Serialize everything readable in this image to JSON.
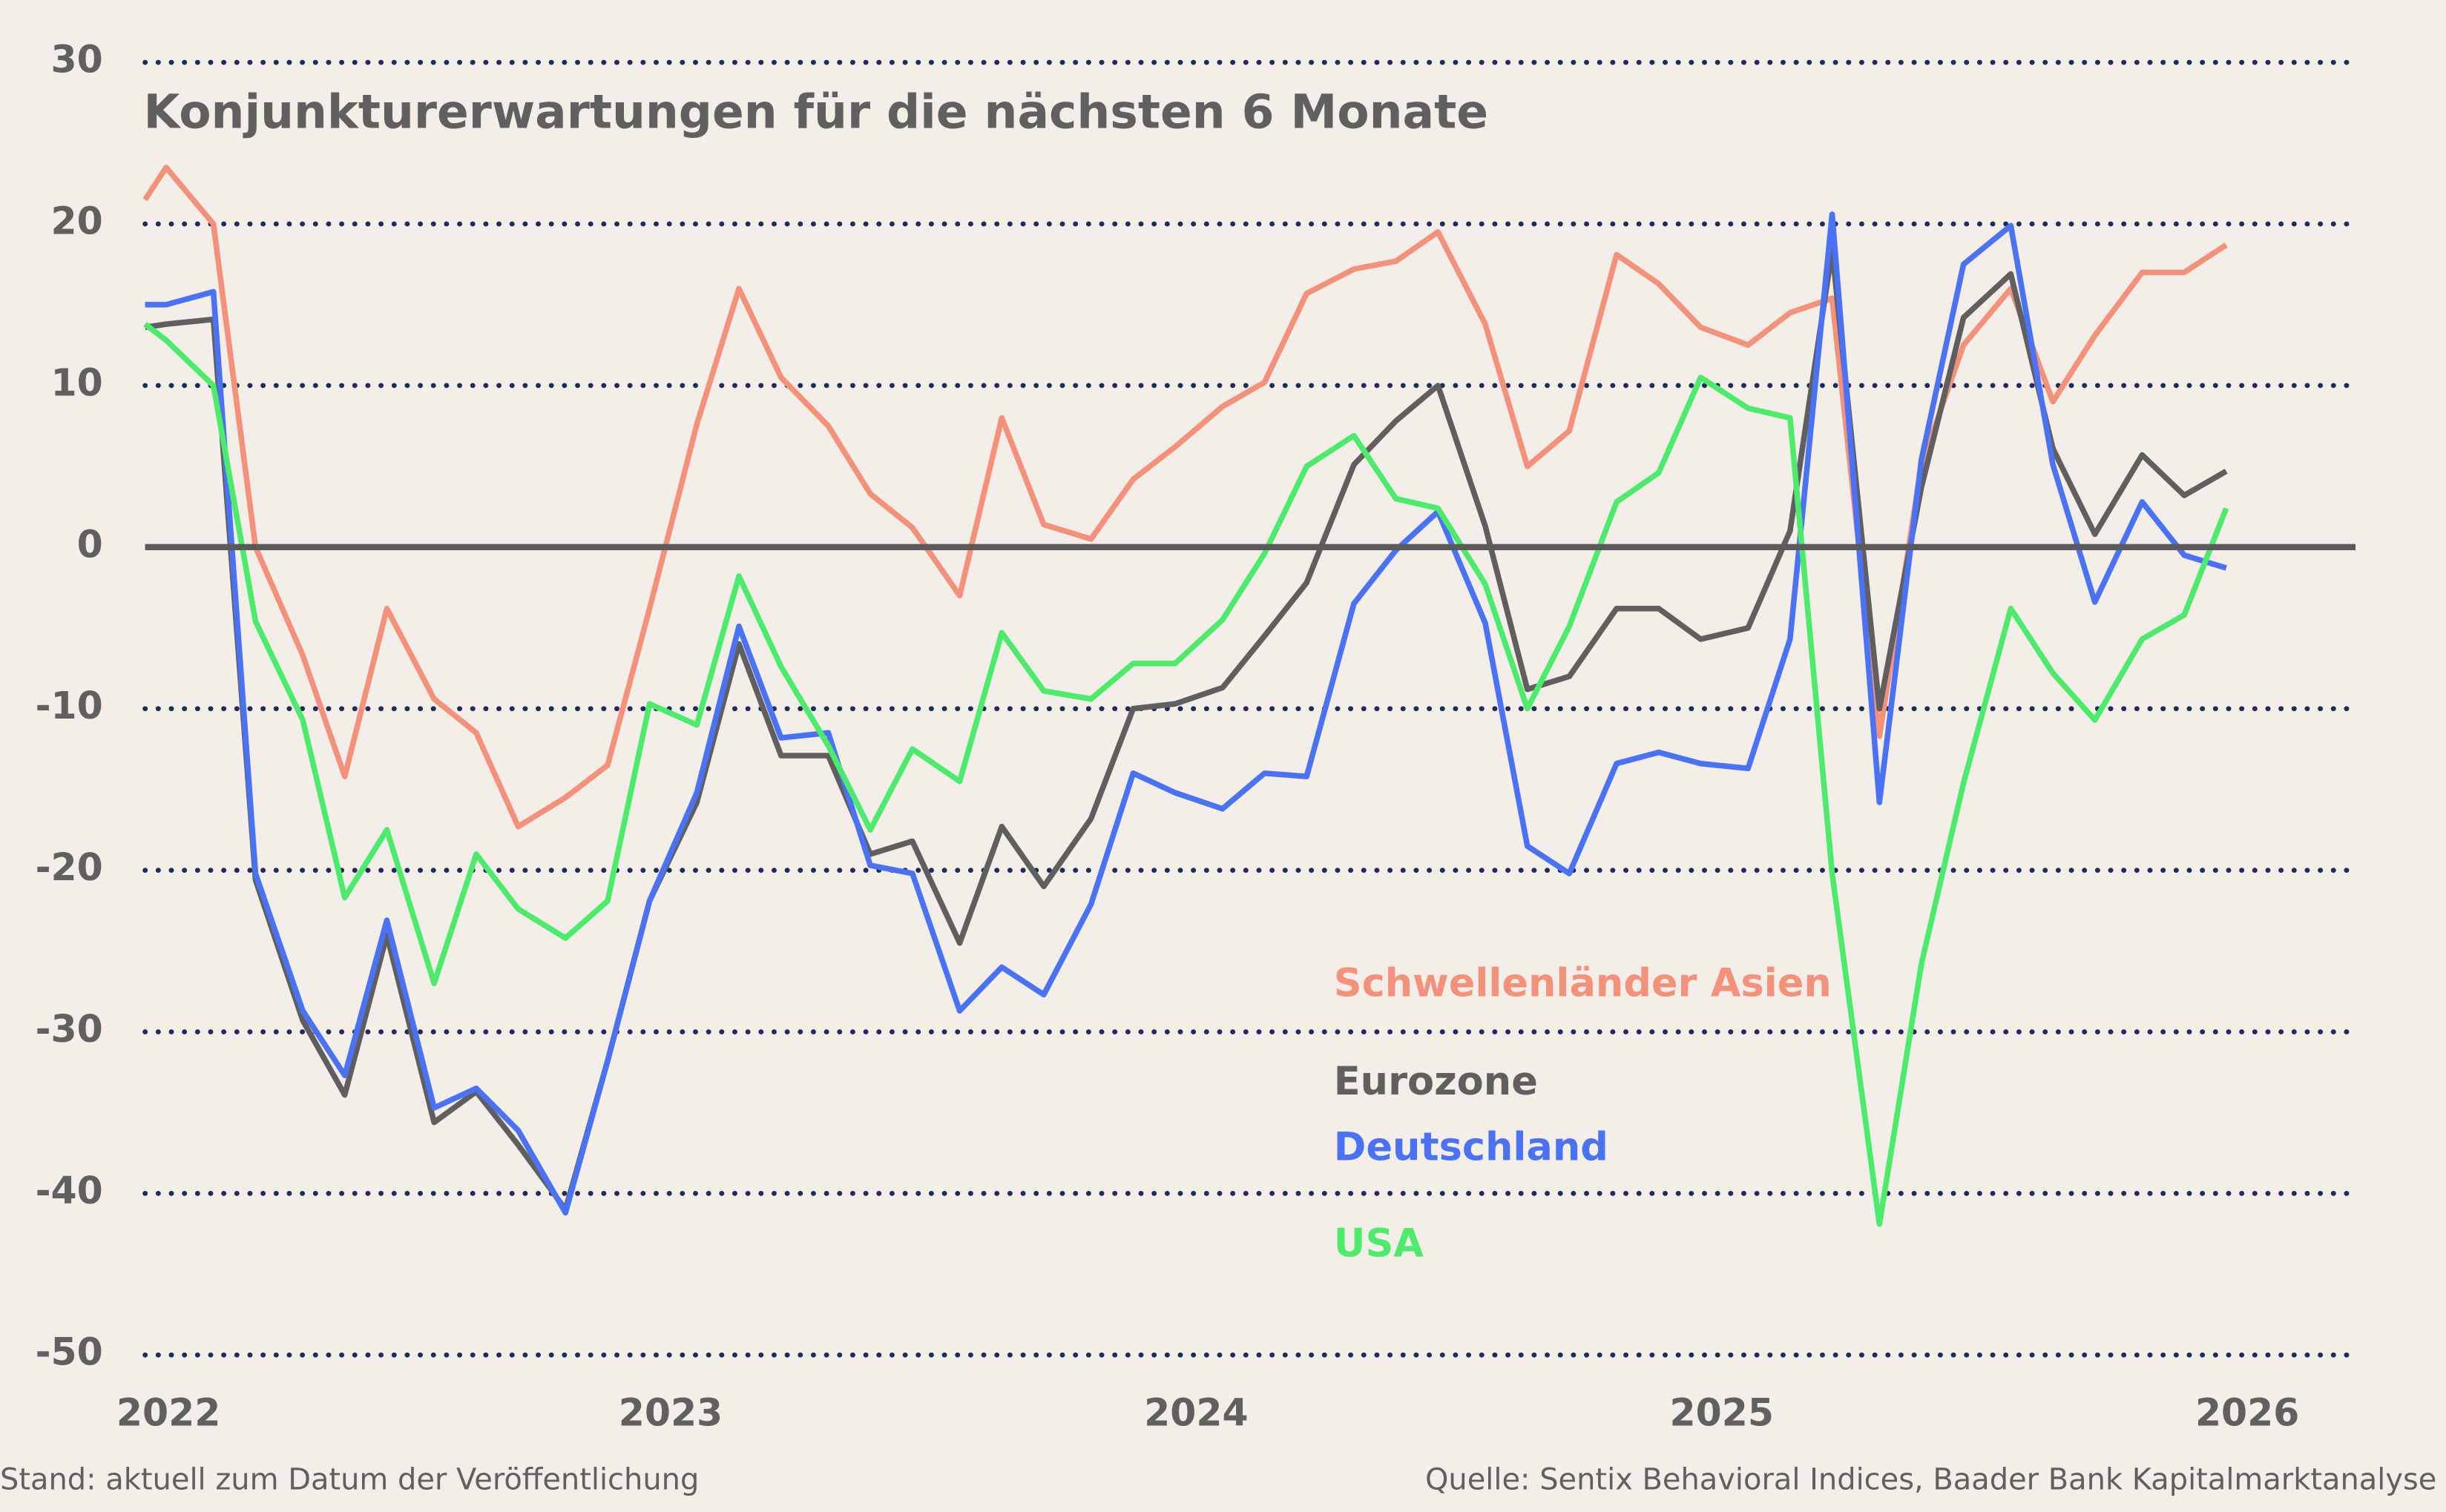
{
  "chart_data": {
    "type": "line",
    "title": "Konjunkturerwartungen für die nächsten 6 Monate",
    "footnote_left": "Stand: aktuell zum Datum der Veröffentlichung",
    "footnote_right": "Quelle: Sentix Behavioral Indices, Baader Bank Kapitalmarktanalyse",
    "x": [
      2022.0,
      2022.04,
      2022.13,
      2022.21,
      2022.3,
      2022.38,
      2022.46,
      2022.55,
      2022.63,
      2022.71,
      2022.8,
      2022.88,
      2022.96,
      2023.05,
      2023.13,
      2023.21,
      2023.3,
      2023.38,
      2023.46,
      2023.55,
      2023.63,
      2023.71,
      2023.8,
      2023.88,
      2023.96,
      2024.05,
      2024.13,
      2024.21,
      2024.3,
      2024.38,
      2024.46,
      2024.55,
      2024.63,
      2024.71,
      2024.8,
      2024.88,
      2024.96,
      2025.05,
      2025.13,
      2025.21,
      2025.3,
      2025.38,
      2025.46,
      2025.55,
      2025.63,
      2025.71,
      2025.8,
      2025.88,
      2025.96
    ],
    "xlim": [
      2022,
      2026.2
    ],
    "xticks": [
      2022,
      2023,
      2024,
      2025,
      2026
    ],
    "ylim": [
      -50,
      30
    ],
    "yticks": [
      -50,
      -40,
      -30,
      -20,
      -10,
      0,
      10,
      20,
      30
    ],
    "grid": true,
    "series": [
      {
        "name": "Schwellenländer Asien",
        "color": "#f4917b",
        "values": [
          21.5,
          23.5,
          20,
          0,
          -6.7,
          -14.2,
          -3.8,
          -9.4,
          -11.5,
          -17.3,
          -15.5,
          -13.5,
          -3.8,
          7.6,
          16,
          10.5,
          7.5,
          3.3,
          1.2,
          -3,
          8,
          1.4,
          0.5,
          4.2,
          6.2,
          8.7,
          10.2,
          15.7,
          17.2,
          17.7,
          19.5,
          13.8,
          5,
          7.2,
          18.1,
          16.3,
          13.6,
          12.5,
          14.5,
          15.4,
          -11.7,
          5.1,
          12.5,
          16,
          9,
          13.1,
          17,
          17,
          18.7
        ]
      },
      {
        "name": "Eurozone",
        "color": "#5f5f5f",
        "values": [
          13.6,
          13.8,
          14.1,
          -20.6,
          -29.3,
          -33.9,
          -24,
          -35.6,
          -33.7,
          -37,
          -41,
          -31.8,
          -21.9,
          -15.8,
          -6,
          -12.9,
          -12.9,
          -19,
          -18.2,
          -24.5,
          -17.3,
          -21,
          -16.8,
          -10,
          -9.7,
          -8.7,
          -5.5,
          -2.2,
          5.1,
          7.8,
          10,
          1.3,
          -8.8,
          -8,
          -3.8,
          -3.8,
          -5.7,
          -5,
          1,
          18.4,
          -10,
          3.7,
          14.2,
          16.9,
          6.1,
          0.8,
          5.7,
          3.2,
          4.7
        ]
      },
      {
        "name": "Deutschland",
        "color": "#4a72f5",
        "values": [
          15,
          15,
          15.8,
          -20.2,
          -28.7,
          -32.7,
          -23.1,
          -34.7,
          -33.5,
          -36.1,
          -41.2,
          -31.8,
          -21.9,
          -15.2,
          -4.9,
          -11.8,
          -11.5,
          -19.7,
          -20.2,
          -28.7,
          -26,
          -27.7,
          -22.1,
          -14,
          -15.2,
          -16.2,
          -14,
          -14.2,
          -3.5,
          -0.2,
          2.2,
          -4.7,
          -18.5,
          -20.2,
          -13.4,
          -12.7,
          -13.4,
          -13.7,
          -5.7,
          20.6,
          -15.8,
          5.4,
          17.5,
          19.9,
          5.1,
          -3.4,
          2.8,
          -0.5,
          -1.3
        ]
      },
      {
        "name": "USA",
        "color": "#4deb6b",
        "values": [
          13.8,
          12.8,
          10,
          -4.6,
          -10.7,
          -21.7,
          -17.5,
          -27,
          -19,
          -22.4,
          -24.2,
          -21.9,
          -9.7,
          -11,
          -1.8,
          -7.4,
          -12.3,
          -17.5,
          -12.5,
          -14.5,
          -5.3,
          -8.9,
          -9.4,
          -7.2,
          -7.2,
          -4.5,
          -0.4,
          5,
          6.9,
          3,
          2.4,
          -2.3,
          -10,
          -4.9,
          2.8,
          4.6,
          10.5,
          8.6,
          8,
          -20.2,
          -41.9,
          -25.8,
          -14.6,
          -3.8,
          -7.8,
          -10.7,
          -5.7,
          -4.2,
          2.4
        ]
      }
    ]
  }
}
